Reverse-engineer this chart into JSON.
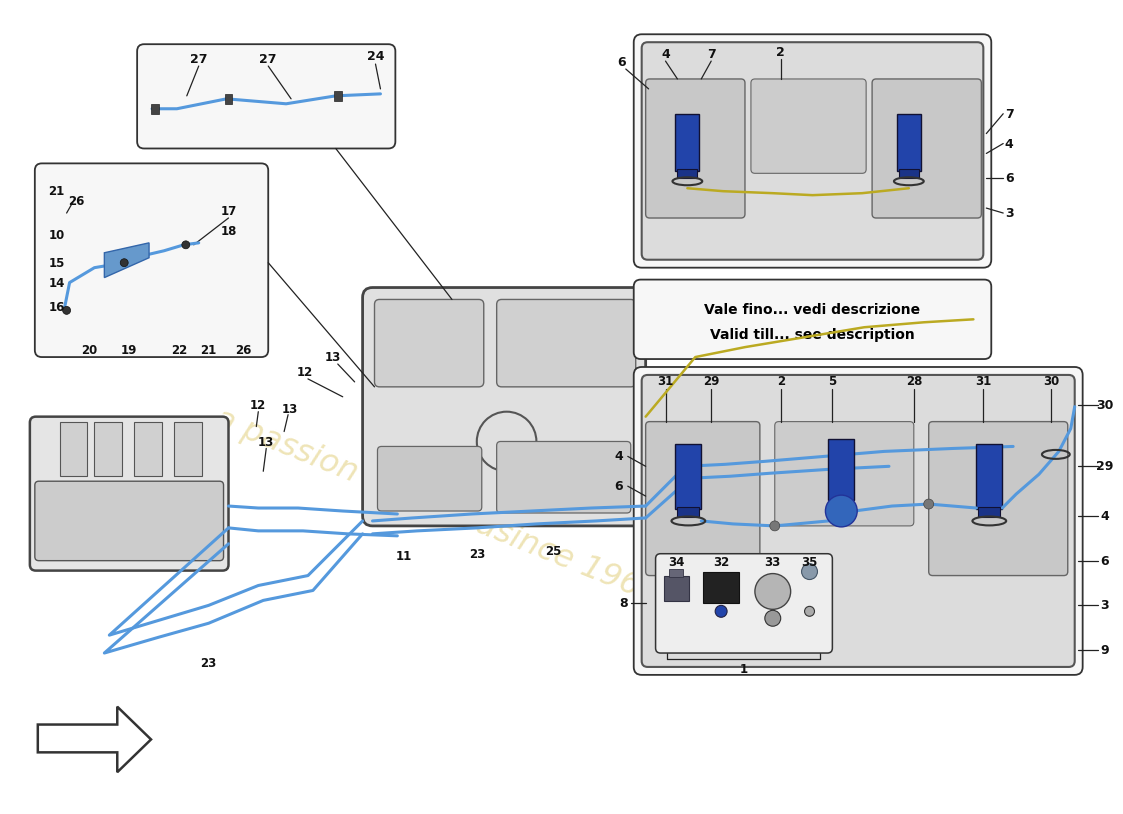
{
  "bg": "#ffffff",
  "blue": "#5599dd",
  "dark": "#222222",
  "gray": "#777777",
  "tank_fill": "#e8e8e8",
  "tank_edge": "#444444",
  "box_fill": "#f7f7f7",
  "box_edge": "#333333",
  "sub_fill": "#d5d5d5",
  "sub_edge": "#555555",
  "pump_fill": "#2244aa",
  "pump_edge": "#111133",
  "yellow": "#ccaa00",
  "wm_text": "a passion for exclusince 1965",
  "wm_color": "#d4b840",
  "wm_alpha": 0.38,
  "note1": "Vale fino... vedi descrizione",
  "note2": "Valid till... see description",
  "note_fs": 10,
  "lfs": 8.5,
  "lfs2": 9
}
